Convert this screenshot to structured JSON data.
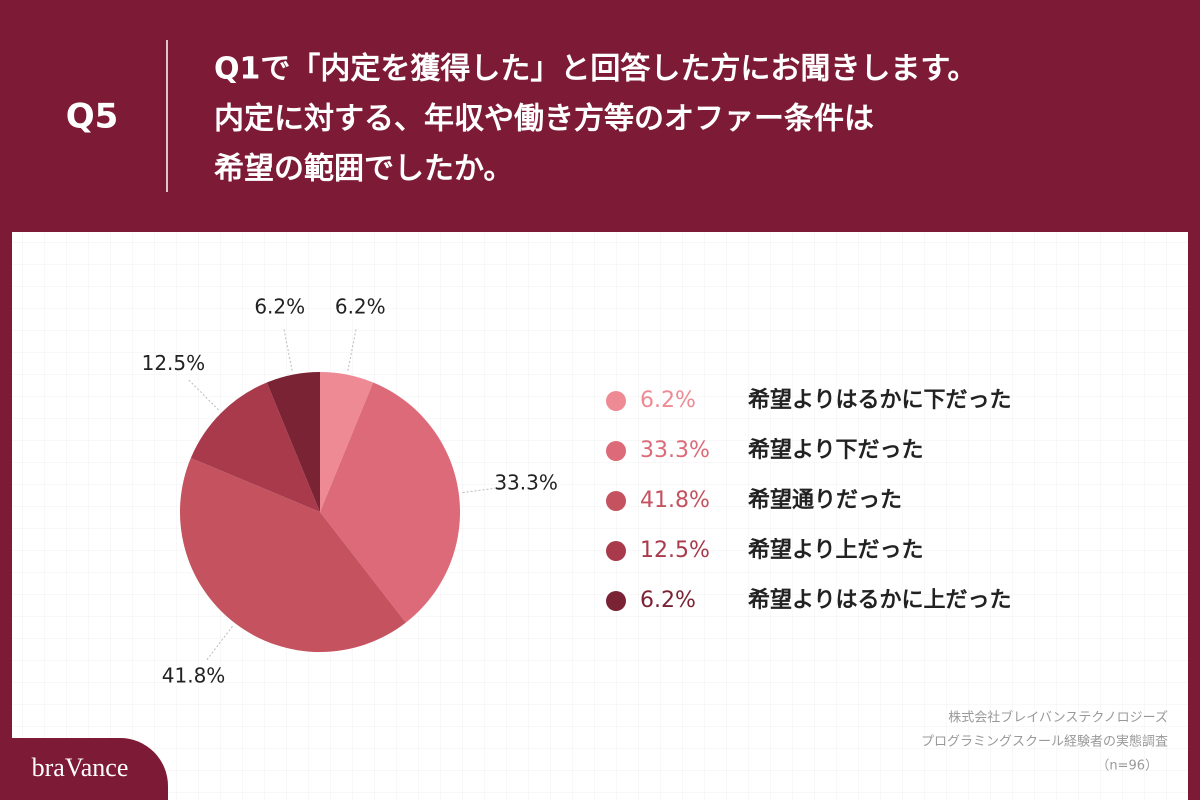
{
  "header": {
    "number": "Q5",
    "title_lines": [
      "Q1で「内定を獲得した」と回答した方にお聞きします。",
      "内定に対する、年収や働き方等のオファー条件は",
      "希望の範囲でしたか。"
    ]
  },
  "chart_data": {
    "type": "pie",
    "categories": [
      "希望よりはるかに下だった",
      "希望より下だった",
      "希望通りだった",
      "希望より上だった",
      "希望よりはるかに上だった"
    ],
    "values": [
      6.2,
      33.3,
      41.8,
      12.5,
      6.2
    ],
    "value_labels": [
      "6.2%",
      "33.3%",
      "41.8%",
      "12.5%",
      "6.2%"
    ],
    "colors": [
      "#ee8a93",
      "#dc6a78",
      "#c4525f",
      "#a83a4b",
      "#7a2334"
    ]
  },
  "footer": {
    "source_lines": [
      "株式会社ブレイバンステクノロジーズ",
      "プログラミングスクール経験者の実態調査",
      "（n=96）"
    ]
  },
  "logo": "braVance"
}
